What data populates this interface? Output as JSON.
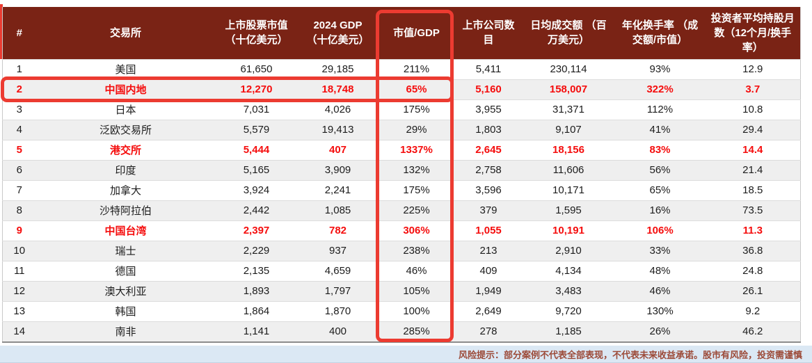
{
  "colors": {
    "header_bg": "#7A2315",
    "highlight_red": "#EC3B31",
    "text_red": "#F50D0D",
    "stripe": "#EFEFEF",
    "footer_bg": "#DBE8F4",
    "footer_text": "#9C4A38"
  },
  "chart_data": {
    "type": "table",
    "columns": [
      "#",
      "交易所",
      "上市股票市值 （十亿美元）",
      "2024 GDP （十亿美元）",
      "市值/GDP",
      "上市公司数目",
      "日均成交额 （百万美元）",
      "年化换手率 （成交额/市值）",
      "投资者平均持股月数（12个月/换手率）"
    ],
    "highlight_note": "rows 2, 5, 9 shown in red; 市值/GDP column and row 2 outlined with red boxes",
    "rows": [
      {
        "rank": "1",
        "exchange": "美国",
        "market_cap": "61,650",
        "gdp": "29,185",
        "cap_to_gdp": "211%",
        "companies": "5,411",
        "daily_turnover": "230,114",
        "turnover_rate": "93%",
        "holding_months": "12.9",
        "highlight": false
      },
      {
        "rank": "2",
        "exchange": "中国内地",
        "market_cap": "12,270",
        "gdp": "18,748",
        "cap_to_gdp": "65%",
        "companies": "5,160",
        "daily_turnover": "158,007",
        "turnover_rate": "322%",
        "holding_months": "3.7",
        "highlight": true
      },
      {
        "rank": "3",
        "exchange": "日本",
        "market_cap": "7,031",
        "gdp": "4,026",
        "cap_to_gdp": "175%",
        "companies": "3,955",
        "daily_turnover": "31,371",
        "turnover_rate": "112%",
        "holding_months": "10.8",
        "highlight": false
      },
      {
        "rank": "4",
        "exchange": "泛欧交易所",
        "market_cap": "5,579",
        "gdp": "19,413",
        "cap_to_gdp": "29%",
        "companies": "1,803",
        "daily_turnover": "9,107",
        "turnover_rate": "41%",
        "holding_months": "29.4",
        "highlight": false
      },
      {
        "rank": "5",
        "exchange": "港交所",
        "market_cap": "5,444",
        "gdp": "407",
        "cap_to_gdp": "1337%",
        "companies": "2,645",
        "daily_turnover": "18,156",
        "turnover_rate": "83%",
        "holding_months": "14.4",
        "highlight": true
      },
      {
        "rank": "6",
        "exchange": "印度",
        "market_cap": "5,165",
        "gdp": "3,909",
        "cap_to_gdp": "132%",
        "companies": "2,758",
        "daily_turnover": "11,606",
        "turnover_rate": "56%",
        "holding_months": "21.4",
        "highlight": false
      },
      {
        "rank": "7",
        "exchange": "加拿大",
        "market_cap": "3,924",
        "gdp": "2,241",
        "cap_to_gdp": "175%",
        "companies": "3,596",
        "daily_turnover": "10,171",
        "turnover_rate": "65%",
        "holding_months": "18.5",
        "highlight": false
      },
      {
        "rank": "8",
        "exchange": "沙特阿拉伯",
        "market_cap": "2,442",
        "gdp": "1,085",
        "cap_to_gdp": "225%",
        "companies": "379",
        "daily_turnover": "1,595",
        "turnover_rate": "16%",
        "holding_months": "73.5",
        "highlight": false
      },
      {
        "rank": "9",
        "exchange": "中国台湾",
        "market_cap": "2,397",
        "gdp": "782",
        "cap_to_gdp": "306%",
        "companies": "1,055",
        "daily_turnover": "10,191",
        "turnover_rate": "106%",
        "holding_months": "11.3",
        "highlight": true
      },
      {
        "rank": "10",
        "exchange": "瑞士",
        "market_cap": "2,229",
        "gdp": "937",
        "cap_to_gdp": "238%",
        "companies": "213",
        "daily_turnover": "2,910",
        "turnover_rate": "33%",
        "holding_months": "36.8",
        "highlight": false
      },
      {
        "rank": "11",
        "exchange": "德国",
        "market_cap": "2,135",
        "gdp": "4,659",
        "cap_to_gdp": "46%",
        "companies": "409",
        "daily_turnover": "4,134",
        "turnover_rate": "48%",
        "holding_months": "24.8",
        "highlight": false
      },
      {
        "rank": "12",
        "exchange": "澳大利亚",
        "market_cap": "1,893",
        "gdp": "1,797",
        "cap_to_gdp": "105%",
        "companies": "1,949",
        "daily_turnover": "3,483",
        "turnover_rate": "46%",
        "holding_months": "26.1",
        "highlight": false
      },
      {
        "rank": "13",
        "exchange": "韩国",
        "market_cap": "1,864",
        "gdp": "1,870",
        "cap_to_gdp": "100%",
        "companies": "2,649",
        "daily_turnover": "9,720",
        "turnover_rate": "130%",
        "holding_months": "9.2",
        "highlight": false
      },
      {
        "rank": "14",
        "exchange": "南非",
        "market_cap": "1,141",
        "gdp": "400",
        "cap_to_gdp": "285%",
        "companies": "278",
        "daily_turnover": "1,185",
        "turnover_rate": "26%",
        "holding_months": "46.2",
        "highlight": false
      }
    ]
  },
  "footer": {
    "risk_note": "风险提示：部分案例不代表全部表现，不代表未来收益承诺。股市有风险，投资需谨慎"
  }
}
